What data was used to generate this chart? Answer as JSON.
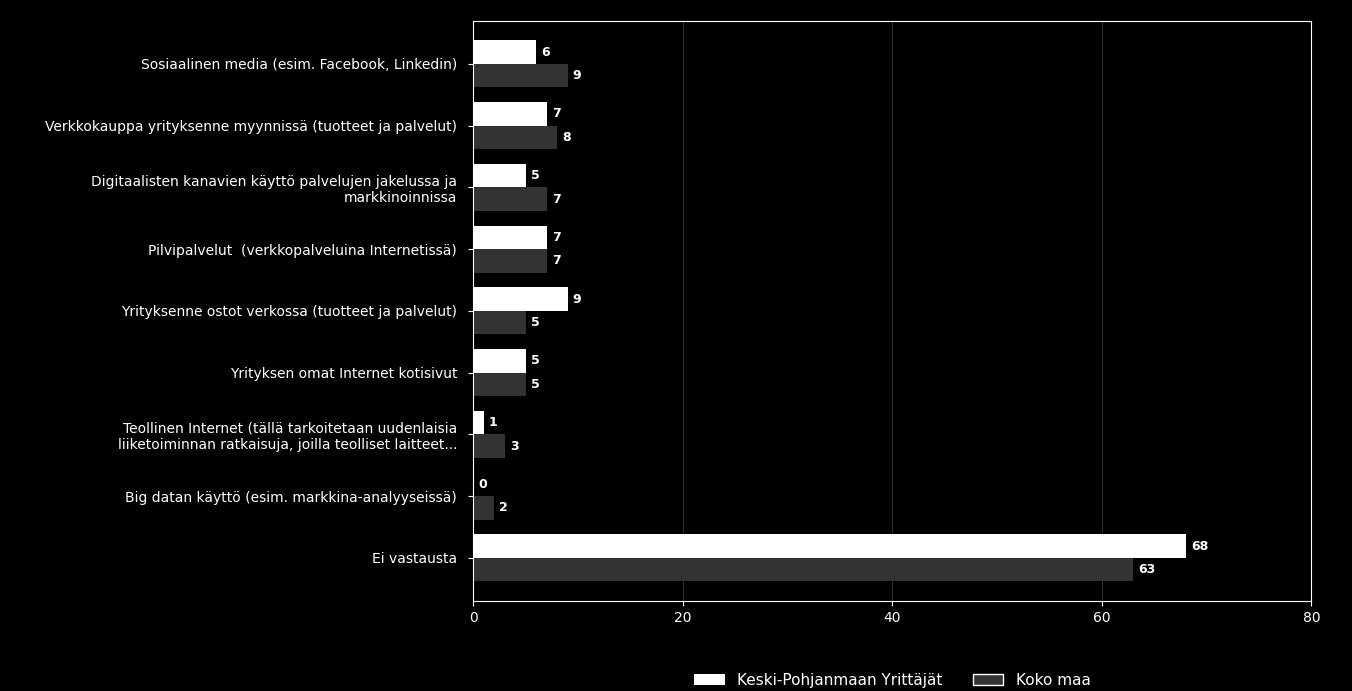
{
  "categories": [
    "Sosiaalinen media (esim. Facebook, Linkedin)",
    "Verkkokauppa yrityksenne myynnissä (tuotteet ja palvelut)",
    "Digitaalisten kanavien käyttö palvelujen jakelussa ja\nmarkkinoinnissa",
    "Pilvipalvelut  (verkkopalveluina Internetissä)",
    "Yrityksenne ostot verkossa (tuotteet ja palvelut)",
    "Yrityksen omat Internet kotisivut",
    "Teollinen Internet (tällä tarkoitetaan uudenlaisia\nliiketoiminnan ratkaisuja, joilla teolliset laitteet...",
    "Big datan käyttö (esim. markkina-analyyseissä)",
    "Ei vastausta"
  ],
  "keski_values": [
    6,
    7,
    5,
    7,
    9,
    5,
    1,
    0,
    68
  ],
  "koko_values": [
    9,
    8,
    7,
    7,
    5,
    5,
    3,
    2,
    63
  ],
  "bar_height": 0.38,
  "color_keski": "#ffffff",
  "color_koko": "#333333",
  "background_color": "#000000",
  "text_color": "#ffffff",
  "bar_text_color": "#ffffff",
  "xlim": [
    0,
    80
  ],
  "xticks": [
    0,
    20,
    40,
    60,
    80
  ],
  "legend_keski": "Keski-Pohjanmaan Yrittäjät",
  "legend_koko": "Koko maa",
  "font_size_labels": 10,
  "font_size_ticks": 10,
  "font_size_values": 9,
  "font_size_legend": 11
}
